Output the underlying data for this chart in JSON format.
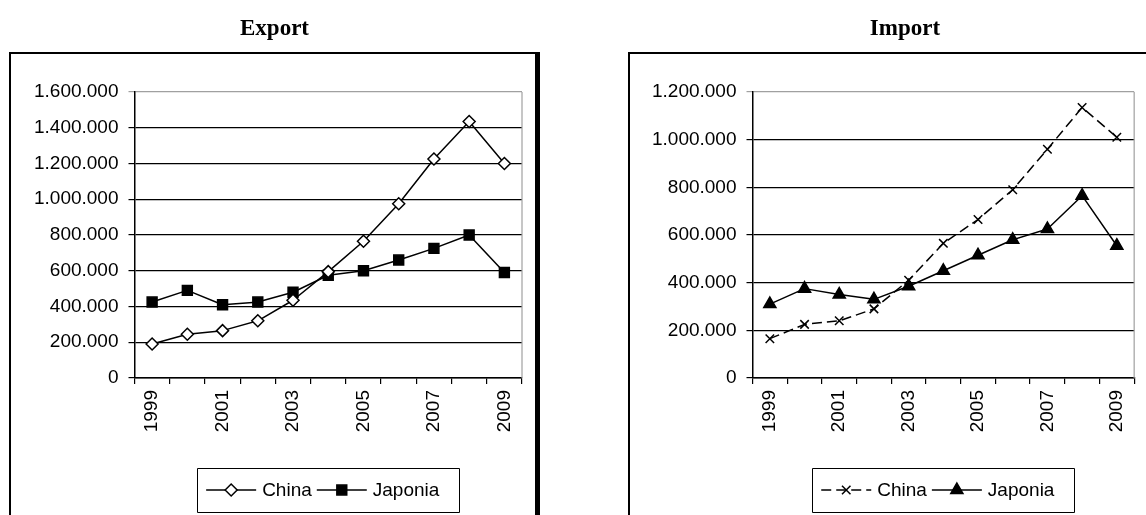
{
  "chart_data": [
    {
      "type": "line",
      "title": "Export",
      "categories": [
        "1999",
        null,
        "2001",
        null,
        "2003",
        null,
        "2005",
        null,
        "2007",
        null,
        "2009"
      ],
      "series": [
        {
          "name": "China",
          "color": "#000000",
          "marker": "diamond",
          "line_style": "solid",
          "values": [
            190000,
            245000,
            265000,
            320000,
            435000,
            595000,
            765000,
            975000,
            1225000,
            1435000,
            1200000
          ]
        },
        {
          "name": "Japonia",
          "color": "#000000",
          "marker": "square",
          "line_style": "solid",
          "values": [
            425000,
            490000,
            410000,
            425000,
            480000,
            575000,
            600000,
            660000,
            725000,
            800000,
            590000
          ]
        }
      ],
      "ylim": [
        0,
        1600000
      ],
      "yticks": [
        0,
        {
          "value": 200000,
          "label": "200.000"
        },
        {
          "value": 400000,
          "label": "400.000"
        },
        {
          "value": 600000,
          "label": "600.000"
        },
        {
          "value": 800000,
          "label": "800.000"
        },
        {
          "value": 1000000,
          "label": "1.000.000"
        },
        {
          "value": 1200000,
          "label": "1.200.000"
        },
        {
          "value": 1400000,
          "label": "1.400.000"
        },
        {
          "value": 1600000,
          "label": "1.600.000"
        }
      ],
      "grid": "y",
      "legend": "bottom"
    },
    {
      "type": "line",
      "title": "Import",
      "categories": [
        "1999",
        null,
        "2001",
        null,
        "2003",
        null,
        "2005",
        null,
        "2007",
        null,
        "2009"
      ],
      "series": [
        {
          "name": "China",
          "color": "#000000",
          "marker": "cross",
          "line_style": "dashed",
          "values": [
            165000,
            225000,
            240000,
            290000,
            410000,
            565000,
            665000,
            790000,
            960000,
            1135000,
            1010000
          ]
        },
        {
          "name": "Japonia",
          "color": "#000000",
          "marker": "triangle",
          "line_style": "solid",
          "values": [
            310000,
            375000,
            350000,
            330000,
            385000,
            450000,
            515000,
            580000,
            625000,
            765000,
            555000
          ]
        }
      ],
      "ylim": [
        0,
        1200000
      ],
      "yticks": [
        0,
        {
          "value": 200000,
          "label": "200.000"
        },
        {
          "value": 400000,
          "label": "400.000"
        },
        {
          "value": 600000,
          "label": "600.000"
        },
        {
          "value": 800000,
          "label": "800.000"
        },
        {
          "value": 1000000,
          "label": "1.000.000"
        },
        {
          "value": 1200000,
          "label": "1.200.000"
        }
      ],
      "grid": "y",
      "legend": "bottom"
    }
  ]
}
